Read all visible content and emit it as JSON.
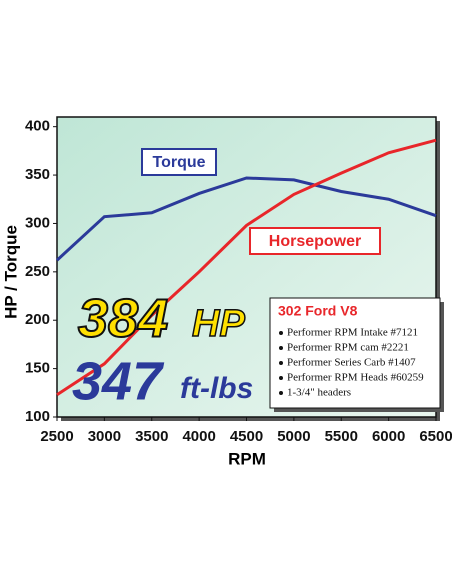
{
  "chart_data": {
    "type": "line",
    "x": [
      2500,
      3000,
      3500,
      4000,
      4500,
      5000,
      5500,
      6000,
      6500
    ],
    "series": [
      {
        "name": "Torque",
        "color": "#2b3a9a",
        "values": [
          262,
          307,
          311,
          331,
          347,
          345,
          333,
          325,
          308
        ]
      },
      {
        "name": "Horsepower",
        "color": "#e8262a",
        "values": [
          123,
          155,
          205,
          250,
          298,
          330,
          352,
          373,
          386
        ]
      }
    ],
    "xlim": [
      2500,
      6500
    ],
    "xticks": [
      2500,
      3000,
      3500,
      4000,
      4500,
      5000,
      5500,
      6000,
      6500
    ],
    "ylim": [
      100,
      410
    ],
    "yticks": [
      100,
      150,
      200,
      250,
      300,
      350,
      400
    ],
    "xlabel": "RPM",
    "ylabel": "HP / Torque",
    "headline": {
      "hp": "384",
      "hp_unit": "HP",
      "torque": "347",
      "torque_unit": "ft-lbs"
    },
    "info": {
      "title": "302 Ford V8",
      "items": [
        "Performer RPM Intake #7121",
        "Performer RPM cam #2221",
        "Performer Series Carb #1407",
        "Performer RPM Heads #60259",
        "1-3/4\" headers"
      ]
    }
  }
}
